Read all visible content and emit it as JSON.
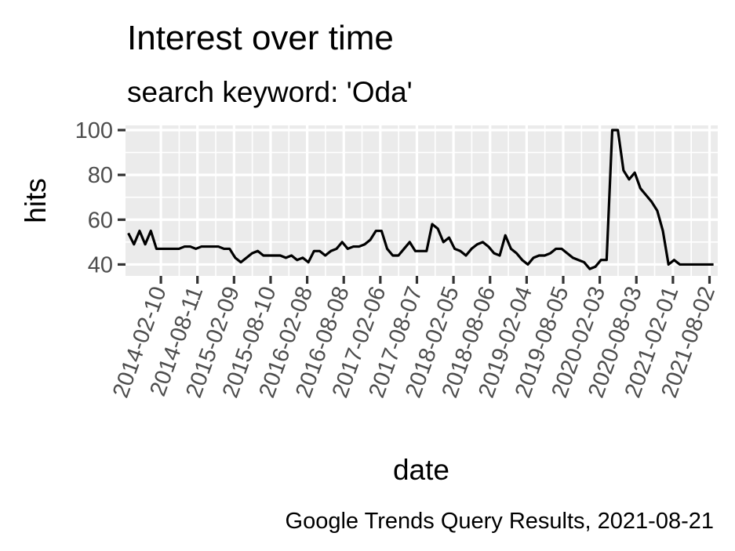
{
  "colors": {
    "panel_background": "#EBEBEB",
    "gridline": "#FFFFFF",
    "series_line": "#000000",
    "tick_label": "#4D4D4D",
    "tick_mark": "#333333"
  },
  "chart_data": {
    "type": "line",
    "title": "Interest over time",
    "subtitle": "search keyword: 'Oda'",
    "xlabel": "date",
    "ylabel": "hits",
    "caption": "Google Trends Query Results, 2021-08-21",
    "grid": true,
    "legend": "none",
    "xlim": [
      "2013-08-18",
      "2021-09-12"
    ],
    "ylim": [
      34.9,
      102.1
    ],
    "x_ticks": [
      "2014-02-10",
      "2014-08-11",
      "2015-02-09",
      "2015-08-10",
      "2016-02-08",
      "2016-08-08",
      "2017-02-06",
      "2017-08-07",
      "2018-02-05",
      "2018-08-06",
      "2019-02-04",
      "2019-08-05",
      "2020-02-03",
      "2020-08-03",
      "2021-02-01",
      "2021-08-02"
    ],
    "y_ticks": [
      40,
      60,
      80,
      100
    ],
    "series": [
      {
        "x": [
          "2013-09-01",
          "2013-09-29",
          "2013-10-27",
          "2013-11-24",
          "2013-12-22",
          "2014-01-19",
          "2014-02-16",
          "2014-03-16",
          "2014-04-13",
          "2014-05-11",
          "2014-06-08",
          "2014-07-06",
          "2014-08-03",
          "2014-08-31",
          "2014-09-28",
          "2014-10-26",
          "2014-11-23",
          "2014-12-21",
          "2015-01-18",
          "2015-02-15",
          "2015-03-15",
          "2015-04-12",
          "2015-05-10",
          "2015-06-07",
          "2015-07-05",
          "2015-08-02",
          "2015-08-30",
          "2015-09-27",
          "2015-10-25",
          "2015-11-22",
          "2015-12-20",
          "2016-01-17",
          "2016-02-14",
          "2016-03-13",
          "2016-04-10",
          "2016-05-08",
          "2016-06-05",
          "2016-07-03",
          "2016-07-31",
          "2016-08-28",
          "2016-09-25",
          "2016-10-23",
          "2016-11-20",
          "2016-12-18",
          "2017-01-15",
          "2017-02-12",
          "2017-03-12",
          "2017-04-09",
          "2017-05-07",
          "2017-06-04",
          "2017-07-02",
          "2017-07-30",
          "2017-08-27",
          "2017-09-24",
          "2017-10-22",
          "2017-11-19",
          "2017-12-17",
          "2018-01-14",
          "2018-02-11",
          "2018-03-11",
          "2018-04-08",
          "2018-05-06",
          "2018-06-03",
          "2018-07-01",
          "2018-07-29",
          "2018-08-26",
          "2018-09-23",
          "2018-10-21",
          "2018-11-18",
          "2018-12-16",
          "2019-01-13",
          "2019-02-10",
          "2019-03-10",
          "2019-04-07",
          "2019-05-05",
          "2019-06-02",
          "2019-06-30",
          "2019-07-28",
          "2019-08-25",
          "2019-09-22",
          "2019-10-20",
          "2019-11-17",
          "2019-12-15",
          "2020-01-12",
          "2020-02-09",
          "2020-03-08",
          "2020-04-05",
          "2020-05-03",
          "2020-05-31",
          "2020-06-28",
          "2020-07-26",
          "2020-08-23",
          "2020-09-20",
          "2020-10-18",
          "2020-11-15",
          "2020-12-13",
          "2021-01-10",
          "2021-02-07",
          "2021-03-07",
          "2021-04-04",
          "2021-05-02",
          "2021-05-30",
          "2021-06-27",
          "2021-07-25",
          "2021-08-22"
        ],
        "values": [
          54,
          49,
          55,
          49,
          55,
          47,
          47,
          47,
          47,
          47,
          48,
          48,
          47,
          48,
          48,
          48,
          48,
          47,
          47,
          43,
          41,
          43,
          45,
          46,
          44,
          44,
          44,
          44,
          43,
          44,
          42,
          43,
          41,
          46,
          46,
          44,
          46,
          47,
          50,
          47,
          48,
          48,
          49,
          51,
          55,
          55,
          47,
          44,
          44,
          47,
          50,
          46,
          46,
          46,
          58,
          56,
          50,
          52,
          47,
          46,
          44,
          47,
          49,
          50,
          48,
          45,
          44,
          53,
          47,
          45,
          42,
          40,
          43,
          44,
          44,
          45,
          47,
          47,
          45,
          43,
          42,
          41,
          38,
          39,
          42,
          42,
          100,
          100,
          82,
          78,
          81,
          74,
          71,
          68,
          64,
          55,
          40,
          42,
          40,
          40,
          40,
          40,
          40,
          40,
          40
        ]
      }
    ]
  }
}
